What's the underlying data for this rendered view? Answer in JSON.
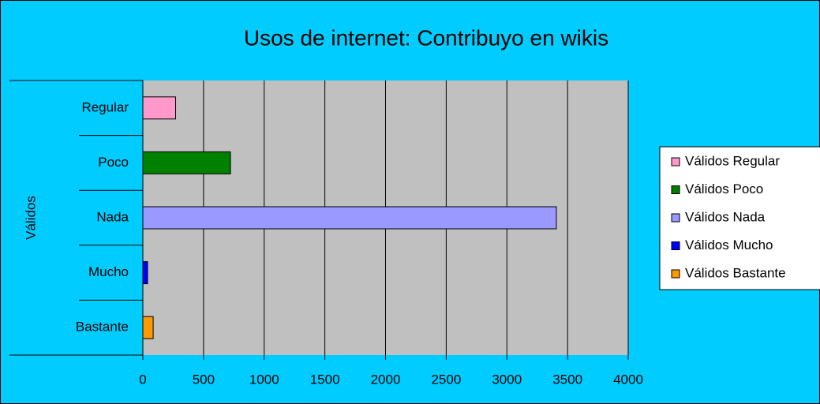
{
  "chart_data": {
    "type": "bar",
    "orientation": "horizontal",
    "title": "Usos de internet: Contribuyo en wikis",
    "y_label": "Válidos",
    "categories": [
      "Regular",
      "Poco",
      "Nada",
      "Mucho",
      "Bastante"
    ],
    "series": [
      {
        "name": "Válidos Regular",
        "color": "#ff99cc",
        "values": [
          270,
          null,
          null,
          null,
          null
        ]
      },
      {
        "name": "Válidos Poco",
        "color": "#008000",
        "values": [
          null,
          722,
          null,
          null,
          null
        ]
      },
      {
        "name": "Válidos Nada",
        "color": "#9999ff",
        "values": [
          null,
          null,
          3408,
          null,
          null
        ]
      },
      {
        "name": "Válidos Mucho",
        "color": "#0000ff",
        "values": [
          null,
          null,
          null,
          39,
          null
        ]
      },
      {
        "name": "Válidos Bastante",
        "color": "#ff9900",
        "values": [
          null,
          null,
          null,
          null,
          85
        ]
      }
    ],
    "xlim": [
      0,
      4000
    ],
    "xticks": [
      0,
      500,
      1000,
      1500,
      2000,
      2500,
      3000,
      3500,
      4000
    ],
    "grid": true,
    "legend": "right"
  }
}
